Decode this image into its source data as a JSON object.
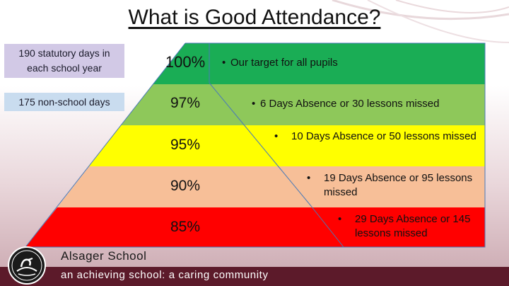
{
  "title": "What is Good Attendance?",
  "info_boxes": {
    "statutory": "190 statutory days in each school year",
    "non_school": "175 non-school days"
  },
  "levels": [
    {
      "percent": "100%",
      "description": "Our target for all pupils",
      "color": "#1aad55"
    },
    {
      "percent": "97%",
      "description": "6 Days Absence or 30 lessons missed",
      "color": "#8ec85a"
    },
    {
      "percent": "95%",
      "description": "10 Days Absence or 50 lessons missed",
      "color": "#ffff00"
    },
    {
      "percent": "90%",
      "description": "19 Days Absence or 95 lessons missed",
      "color": "#f7bf98"
    },
    {
      "percent": "85%",
      "description": "29 Days Absence or 145 lessons missed",
      "color": "#ff0000"
    }
  ],
  "footer": {
    "school_name": "Alsager School",
    "motto": "an achieving school: a caring community",
    "bar_color": "#5c1a2a"
  }
}
